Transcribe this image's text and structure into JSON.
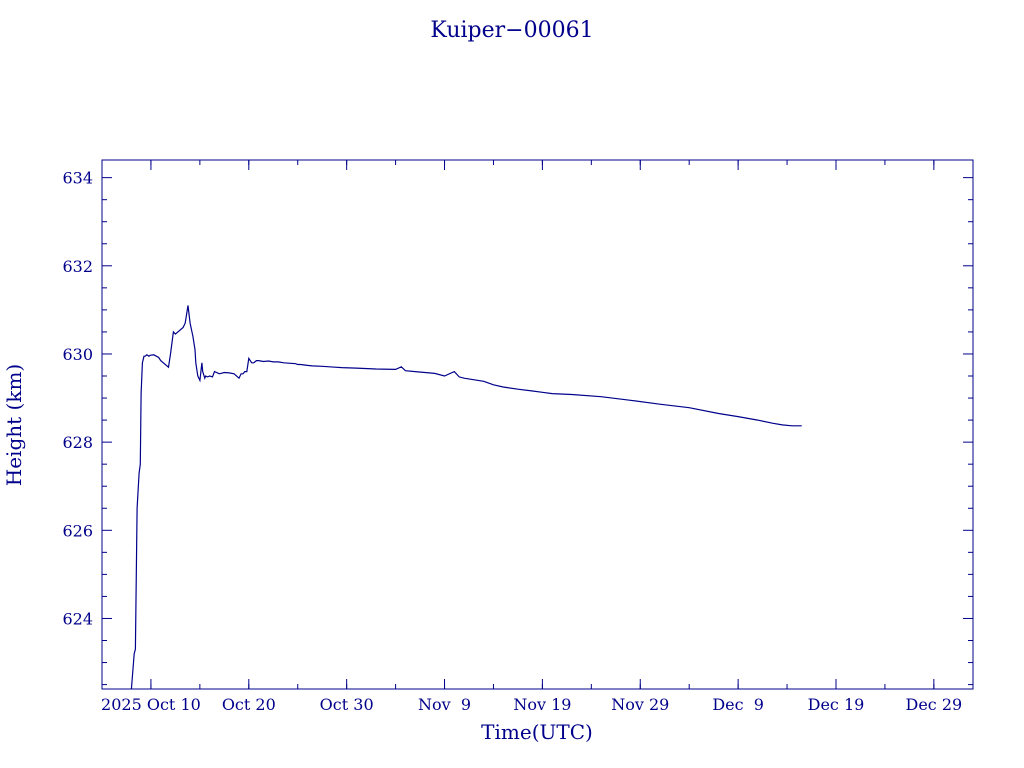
{
  "chart_data": {
    "type": "line",
    "title": "Kuiper−00061",
    "xlabel": "Time(UTC)",
    "ylabel": "Height (km)",
    "color": "#00008b",
    "xlim": [
      "2025-10-05",
      "2026-01-02"
    ],
    "ylim": [
      622.4,
      634.4
    ],
    "x_ticks": [
      {
        "date": "2025-10-10",
        "label": "2025 Oct 10"
      },
      {
        "date": "2025-10-20",
        "label": "Oct 20"
      },
      {
        "date": "2025-10-30",
        "label": "Oct 30"
      },
      {
        "date": "2025-11-09",
        "label": "Nov  9"
      },
      {
        "date": "2025-11-19",
        "label": "Nov 19"
      },
      {
        "date": "2025-11-29",
        "label": "Nov 29"
      },
      {
        "date": "2025-12-09",
        "label": "Dec  9"
      },
      {
        "date": "2025-12-19",
        "label": "Dec 19"
      },
      {
        "date": "2025-12-29",
        "label": "Dec 29"
      }
    ],
    "y_ticks": [
      624,
      626,
      628,
      630,
      632,
      634
    ],
    "series": [
      {
        "x": [
          "2025-10-08T00:00",
          "2025-10-08T07:00",
          "2025-10-08T10:00",
          "2025-10-08T14:00",
          "2025-10-08T19:00",
          "2025-10-08T22:00",
          "2025-10-09T00:00",
          "2025-10-09T03:00",
          "2025-10-09T07:00",
          "2025-10-09T10:00",
          "2025-10-09T14:00",
          "2025-10-09T19:00",
          "2025-10-09T22:00",
          "2025-10-10T07:00",
          "2025-10-10T19:00",
          "2025-10-11T00:00",
          "2025-10-11T19:00",
          "2025-10-12T00:00",
          "2025-10-12T07:00",
          "2025-10-12T12:00",
          "2025-10-13T07:00",
          "2025-10-13T12:00",
          "2025-10-13T19:00",
          "2025-10-14T00:00",
          "2025-10-14T07:00",
          "2025-10-14T12:00",
          "2025-10-14T14:00",
          "2025-10-14T19:00",
          "2025-10-15T00:00",
          "2025-10-15T05:00",
          "2025-10-15T07:00",
          "2025-10-15T12:00",
          "2025-10-15T14:00",
          "2025-10-15T19:00",
          "2025-10-16T00:00",
          "2025-10-16T07:00",
          "2025-10-16T12:00",
          "2025-10-17T00:00",
          "2025-10-17T12:00",
          "2025-10-18T00:00",
          "2025-10-18T12:00",
          "2025-10-19T00:00",
          "2025-10-19T05:00",
          "2025-10-19T10:00",
          "2025-10-19T14:00",
          "2025-10-19T19:00",
          "2025-10-20T00:00",
          "2025-10-20T07:00",
          "2025-10-20T12:00",
          "2025-10-20T19:00",
          "2025-10-21T00:00",
          "2025-10-21T12:00",
          "2025-10-22T00:00",
          "2025-10-22T12:00",
          "2025-10-23T00:00",
          "2025-10-23T14:00",
          "2025-10-24T19:00",
          "2025-10-25T00:00",
          "2025-10-25T07:00",
          "2025-10-26T00:00",
          "2025-10-26T12:00",
          "2025-10-27T12:00",
          "2025-10-28T19:00",
          "2025-10-29T12:00",
          "2025-10-31T00:00",
          "2025-11-02T00:00",
          "2025-11-04T00:00",
          "2025-11-04T14:00",
          "2025-11-05T00:00",
          "2025-11-06T00:00",
          "2025-11-08T00:00",
          "2025-11-09T00:00",
          "2025-11-10T00:00",
          "2025-11-10T12:00",
          "2025-11-11T00:00",
          "2025-11-13T00:00",
          "2025-11-14T00:00",
          "2025-11-15T00:00",
          "2025-11-16T12:00",
          "2025-11-18T00:00",
          "2025-11-19T00:00",
          "2025-11-20T00:00",
          "2025-11-22T00:00",
          "2025-11-25T00:00",
          "2025-11-28T00:00",
          "2025-12-01T00:00",
          "2025-12-04T00:00",
          "2025-12-07T00:00",
          "2025-12-09T00:00",
          "2025-12-11T00:00",
          "2025-12-12T12:00",
          "2025-12-13T12:00",
          "2025-12-14T12:00",
          "2025-12-15T12:00"
        ],
        "y": [
          622.4,
          623.2,
          623.3,
          626.5,
          627.3,
          627.5,
          629.1,
          629.8,
          629.95,
          629.95,
          629.98,
          629.95,
          629.97,
          629.98,
          629.92,
          629.85,
          629.7,
          630.0,
          630.5,
          630.45,
          630.6,
          630.7,
          631.1,
          630.7,
          630.4,
          630.1,
          629.8,
          629.5,
          629.4,
          629.8,
          629.6,
          629.45,
          629.5,
          629.48,
          629.5,
          629.48,
          629.6,
          629.55,
          629.58,
          629.57,
          629.55,
          629.45,
          629.55,
          629.55,
          629.6,
          629.6,
          629.9,
          629.8,
          629.8,
          629.85,
          629.85,
          629.83,
          629.84,
          629.82,
          629.82,
          629.8,
          629.78,
          629.76,
          629.76,
          629.74,
          629.73,
          629.72,
          629.7,
          629.69,
          629.68,
          629.66,
          629.65,
          629.71,
          629.62,
          629.6,
          629.56,
          629.5,
          629.6,
          629.48,
          629.45,
          629.38,
          629.3,
          629.25,
          629.2,
          629.16,
          629.13,
          629.1,
          629.08,
          629.03,
          628.95,
          628.86,
          628.78,
          628.65,
          628.58,
          628.5,
          628.43,
          628.39,
          628.37,
          628.37
        ]
      }
    ]
  }
}
